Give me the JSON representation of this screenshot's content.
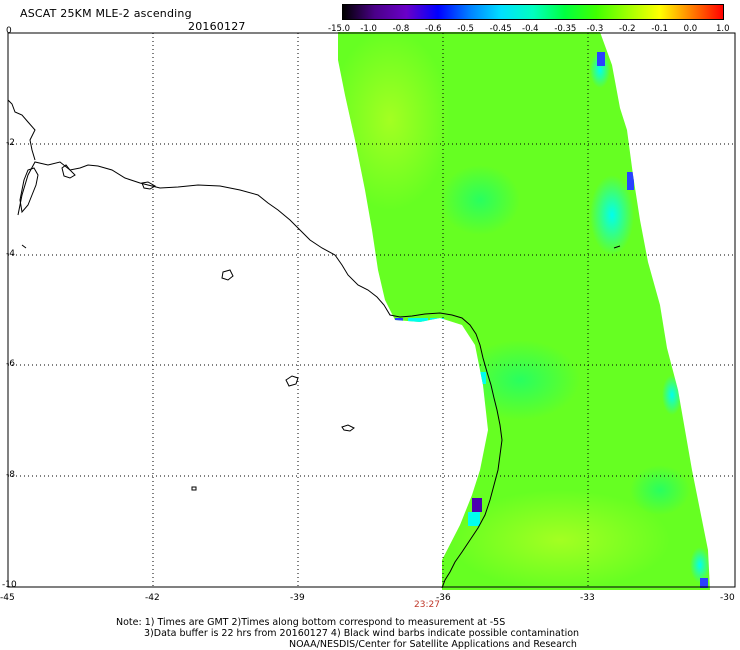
{
  "header": {
    "title": "ASCAT 25KM MLE-2 ascending",
    "date": "20160127"
  },
  "colorbar": {
    "labels": [
      "-15.0",
      "-1.0",
      "-0.8",
      "-0.6",
      "-0.5",
      "-0.45",
      "-0.4",
      "-0.35",
      "-0.3",
      "-0.2",
      "-0.1",
      "0.0",
      "1.0"
    ],
    "colors": [
      "#000000",
      "#4a0088",
      "#6a00c8",
      "#0000ff",
      "#0080ff",
      "#00e0ff",
      "#00ffc0",
      "#00ff40",
      "#40ff00",
      "#a0ff00",
      "#ffff00",
      "#ff8000",
      "#ff0000"
    ]
  },
  "axes": {
    "x_ticks": [
      "-45",
      "-42",
      "-39",
      "-36",
      "-33",
      "-30"
    ],
    "y_ticks": [
      "0",
      "-2",
      "-4",
      "-6",
      "-8",
      "-10"
    ]
  },
  "time_marker": "23:27",
  "notes": {
    "line1": "Note: 1) Times are GMT 2)Times along bottom correspond to measurement at -5S",
    "line2": "3)Data buffer is 22 hrs from 20160127 4) Black wind barbs indicate possible contamination",
    "line3": "NOAA/NESDIS/Center for Satellite Applications and Research"
  }
}
